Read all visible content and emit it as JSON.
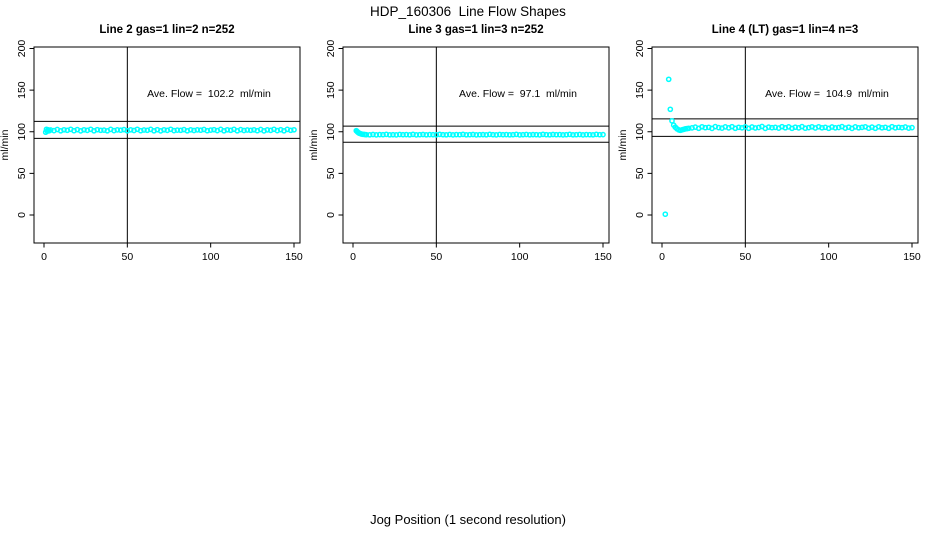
{
  "figure": {
    "title": "HDP_160306  Line Flow Shapes",
    "xlabel": "Jog Position (1 second resolution)",
    "background": "#FFFFFF",
    "axis_color": "#000000",
    "point_color": "#00FFFF"
  },
  "chart_data": [
    {
      "type": "scatter",
      "title": "Line 2 gas=1 lin=2 n=252",
      "annotation": "Ave. Flow =  102.2  ml/min",
      "ave_flow_ml_min": 102.2,
      "n_points": 252,
      "ylabel": "ml/min",
      "xlim": [
        0,
        150
      ],
      "ylim": [
        0,
        200
      ],
      "x_ticks": [
        0,
        50,
        100,
        150
      ],
      "y_ticks": [
        0,
        50,
        100,
        150,
        200
      ],
      "ref_hlines": [
        92.0,
        112.4
      ],
      "ref_vline": 50,
      "grid": false,
      "points_head": [
        [
          1,
          99.5
        ],
        [
          1.5,
          103.0
        ],
        [
          2,
          100.8
        ],
        [
          2.5,
          102.2
        ],
        [
          3,
          101.2
        ]
      ],
      "points_run": {
        "x0": 4,
        "dx": 2,
        "y": [
          102.1,
          101.4,
          102.7,
          101.1,
          102.4,
          101.8,
          103.0,
          101.3,
          102.6,
          101.0,
          102.3,
          101.6,
          102.9,
          101.2,
          102.5,
          101.7,
          102.0,
          101.1,
          102.8,
          101.4,
          102.2,
          101.9,
          102.6,
          101.2,
          102.4,
          101.5,
          103.0,
          101.3,
          102.1,
          101.7,
          102.8,
          101.1,
          102.5,
          101.0,
          102.3,
          101.6,
          102.9,
          101.4,
          102.0,
          101.8,
          102.6,
          101.2,
          102.4,
          101.5,
          102.2,
          101.9,
          102.7,
          101.3,
          102.0,
          102.5,
          101.4,
          102.8,
          101.1,
          102.3,
          101.7,
          102.9,
          101.2,
          102.6,
          101.5,
          102.1,
          101.8,
          102.4,
          101.3,
          102.7,
          101.0,
          102.2,
          101.6,
          102.9,
          101.4,
          102.5,
          101.2,
          102.8,
          101.7,
          102.3
        ]
      }
    },
    {
      "type": "scatter",
      "title": "Line 3 gas=1 lin=3 n=252",
      "annotation": "Ave. Flow =  97.1  ml/min",
      "ave_flow_ml_min": 97.1,
      "n_points": 252,
      "ylabel": "ml/min",
      "xlim": [
        0,
        150
      ],
      "ylim": [
        0,
        200
      ],
      "x_ticks": [
        0,
        50,
        100,
        150
      ],
      "y_ticks": [
        0,
        50,
        100,
        150,
        200
      ],
      "ref_hlines": [
        87.4,
        106.8
      ],
      "ref_vline": 50,
      "grid": false,
      "points_head": [
        [
          2,
          101.3
        ],
        [
          2.5,
          100.2
        ],
        [
          3,
          99.2
        ],
        [
          3.5,
          98.5
        ],
        [
          4,
          98.0
        ],
        [
          5,
          97.3
        ],
        [
          6,
          96.9
        ],
        [
          7,
          96.7
        ]
      ],
      "points_run": {
        "x0": 8,
        "dx": 2,
        "y": [
          96.5,
          96.3,
          96.7,
          96.2,
          96.6,
          96.4,
          96.8,
          96.3,
          96.5,
          96.2,
          96.7,
          96.4,
          96.6,
          96.3,
          96.8,
          96.2,
          96.5,
          96.7,
          96.3,
          96.6,
          96.4,
          96.2,
          96.8,
          96.5,
          96.3,
          96.7,
          96.2,
          96.6,
          96.4,
          96.8,
          96.3,
          96.5,
          96.7,
          96.2,
          96.4,
          96.6,
          96.3,
          96.8,
          96.5,
          96.2,
          96.7,
          96.4,
          96.6,
          96.3,
          96.5,
          96.8,
          96.2,
          96.4,
          96.7,
          96.3,
          96.6,
          96.5,
          96.2,
          96.8,
          96.4,
          96.3,
          96.7,
          96.5,
          96.6,
          96.2,
          96.4,
          96.8,
          96.3,
          96.5,
          96.7,
          96.2,
          96.6,
          96.4,
          96.3,
          96.8,
          96.5,
          96.6
        ]
      }
    },
    {
      "type": "scatter",
      "title": "Line 4 (LT) gas=1 lin=4 n=3",
      "annotation": "Ave. Flow =  104.9  ml/min",
      "ave_flow_ml_min": 104.9,
      "n_points": 3,
      "ylabel": "ml/min",
      "xlim": [
        0,
        150
      ],
      "ylim": [
        0,
        200
      ],
      "x_ticks": [
        0,
        50,
        100,
        150
      ],
      "y_ticks": [
        0,
        50,
        100,
        150,
        200
      ],
      "ref_hlines": [
        94.4,
        115.4
      ],
      "ref_vline": 50,
      "grid": false,
      "points_head": [
        [
          2,
          1
        ],
        [
          4,
          163
        ],
        [
          5,
          127
        ],
        [
          6,
          113
        ],
        [
          7,
          108
        ],
        [
          8,
          105.5
        ],
        [
          9,
          103.5
        ],
        [
          10,
          102.2
        ],
        [
          11,
          101.8
        ],
        [
          12,
          102.4
        ],
        [
          13,
          103.0
        ],
        [
          14,
          103.4
        ],
        [
          15,
          103.8
        ],
        [
          16,
          104.1
        ]
      ],
      "points_run": {
        "x0": 18,
        "dx": 2,
        "y": [
          104.6,
          105.6,
          104.2,
          106.0,
          104.9,
          105.4,
          104.0,
          106.2,
          105.0,
          104.4,
          105.8,
          104.6,
          106.1,
          104.2,
          105.3,
          104.8,
          106.0,
          104.1,
          105.7,
          104.5,
          105.1,
          106.3,
          104.0,
          105.6,
          104.9,
          105.2,
          104.4,
          106.1,
          104.7,
          105.8,
          104.1,
          105.5,
          104.6,
          106.2,
          104.3,
          105.0,
          105.9,
          104.5,
          106.0,
          104.8,
          105.3,
          104.1,
          105.7,
          104.6,
          105.1,
          106.2,
          104.4,
          105.5,
          104.0,
          105.8,
          104.7,
          105.2,
          106.0,
          104.3,
          105.6,
          104.2,
          105.9,
          104.8,
          105.4,
          104.1,
          106.1,
          104.6,
          105.3,
          104.9,
          105.7,
          104.4,
          105.0
        ]
      }
    }
  ]
}
